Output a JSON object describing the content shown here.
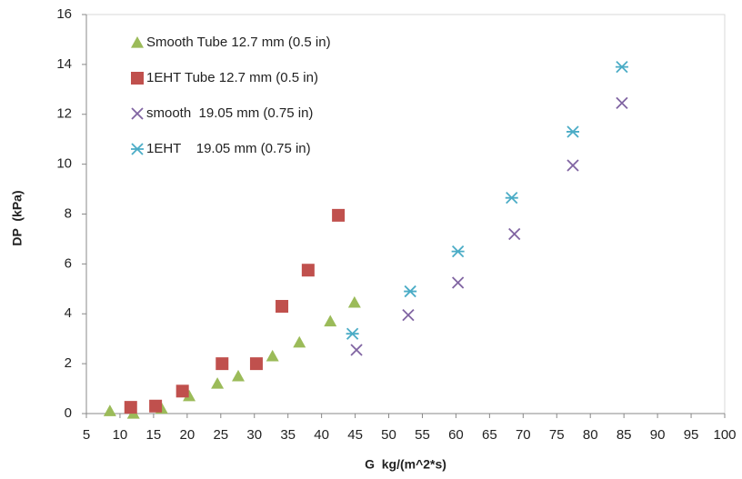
{
  "chart_data": {
    "type": "scatter",
    "x_label": "G  kg/(m^2*s)",
    "y_label": "DP  (kPa)",
    "xlim": [
      5,
      100
    ],
    "ylim": [
      0,
      16
    ],
    "xticks": [
      5,
      10,
      15,
      20,
      25,
      30,
      35,
      40,
      45,
      50,
      55,
      60,
      65,
      70,
      75,
      80,
      85,
      90,
      95,
      100
    ],
    "yticks": [
      0,
      2,
      4,
      6,
      8,
      10,
      12,
      14,
      16
    ],
    "legend": "upper left",
    "series": [
      {
        "name": "Smooth Tube 12.7 mm (0.5 in)",
        "color": "#9bbb59",
        "marker": "triangle",
        "x": [
          8.5,
          12,
          16.2,
          20.3,
          24.5,
          27.6,
          32.7,
          36.7,
          41.3,
          44.9
        ],
        "values": [
          0.1,
          0.0,
          0.2,
          0.7,
          1.2,
          1.5,
          2.3,
          2.85,
          3.7,
          4.45
        ]
      },
      {
        "name": "1EHT Tube 12.7 mm (0.5 in)",
        "color": "#c0504d",
        "marker": "square",
        "x": [
          11.6,
          15.3,
          19.3,
          25.2,
          30.3,
          34.1,
          38.0,
          42.5
        ],
        "values": [
          0.25,
          0.3,
          0.9,
          2.0,
          2.0,
          4.3,
          5.75,
          7.95
        ]
      },
      {
        "name": "smooth  19.05 mm (0.75 in)",
        "color": "#8064a2",
        "marker": "x",
        "x": [
          45.2,
          52.9,
          60.3,
          68.7,
          77.4,
          84.7
        ],
        "values": [
          2.55,
          3.95,
          5.25,
          7.2,
          9.95,
          12.45
        ]
      },
      {
        "name": "1EHT    19.05 mm (0.75 in)",
        "color": "#4bacc6",
        "marker": "asterisk",
        "x": [
          44.6,
          53.2,
          60.3,
          68.3,
          77.4,
          84.7
        ],
        "values": [
          3.2,
          4.9,
          6.5,
          8.65,
          11.3,
          13.9
        ]
      }
    ]
  }
}
